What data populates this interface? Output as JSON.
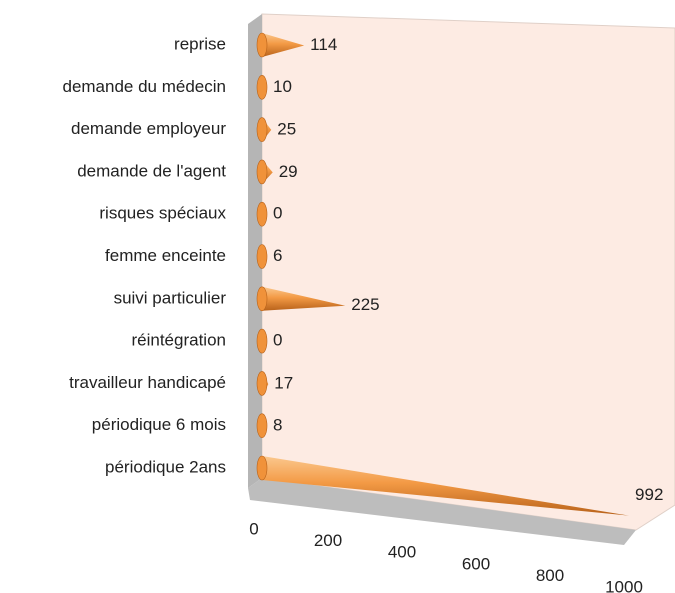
{
  "chart_data": {
    "type": "cone_bar",
    "categories": [
      "reprise",
      "demande du médecin",
      "demande employeur",
      "demande de l'agent",
      "risques spéciaux",
      "femme enceinte",
      "suivi particulier",
      "réintégration",
      "travailleur handicapé",
      "périodique 6 mois",
      "périodique 2ans"
    ],
    "values": [
      114,
      10,
      25,
      29,
      0,
      6,
      225,
      0,
      17,
      8,
      992
    ],
    "color": "#f0923a",
    "xlim": [
      0,
      1000
    ],
    "xticks": [
      0,
      200,
      400,
      600,
      800,
      1000
    ],
    "grid": false
  }
}
